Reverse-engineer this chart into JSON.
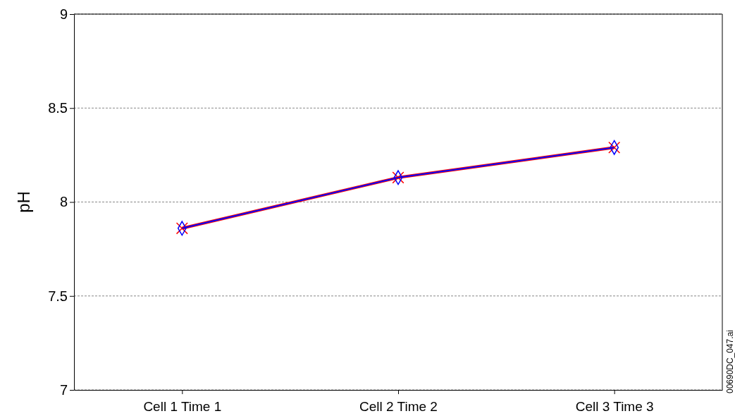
{
  "chart_data": {
    "type": "line",
    "ylabel": "pH",
    "categories": [
      "Cell 1 Time 1",
      "Cell 2 Time 2",
      "Cell 3 Time 3"
    ],
    "series": [
      {
        "color": "#ff0000",
        "marker": "cross",
        "values": [
          7.86,
          8.13,
          8.29
        ]
      },
      {
        "color": "#0000ff",
        "marker": "diamond",
        "values": [
          7.86,
          8.13,
          8.29
        ]
      }
    ],
    "ylim": [
      7,
      9
    ],
    "yticks": [
      7,
      7.5,
      8,
      8.5,
      9
    ],
    "grid": "y",
    "annotations": [
      "00690DC_047.ai"
    ]
  }
}
